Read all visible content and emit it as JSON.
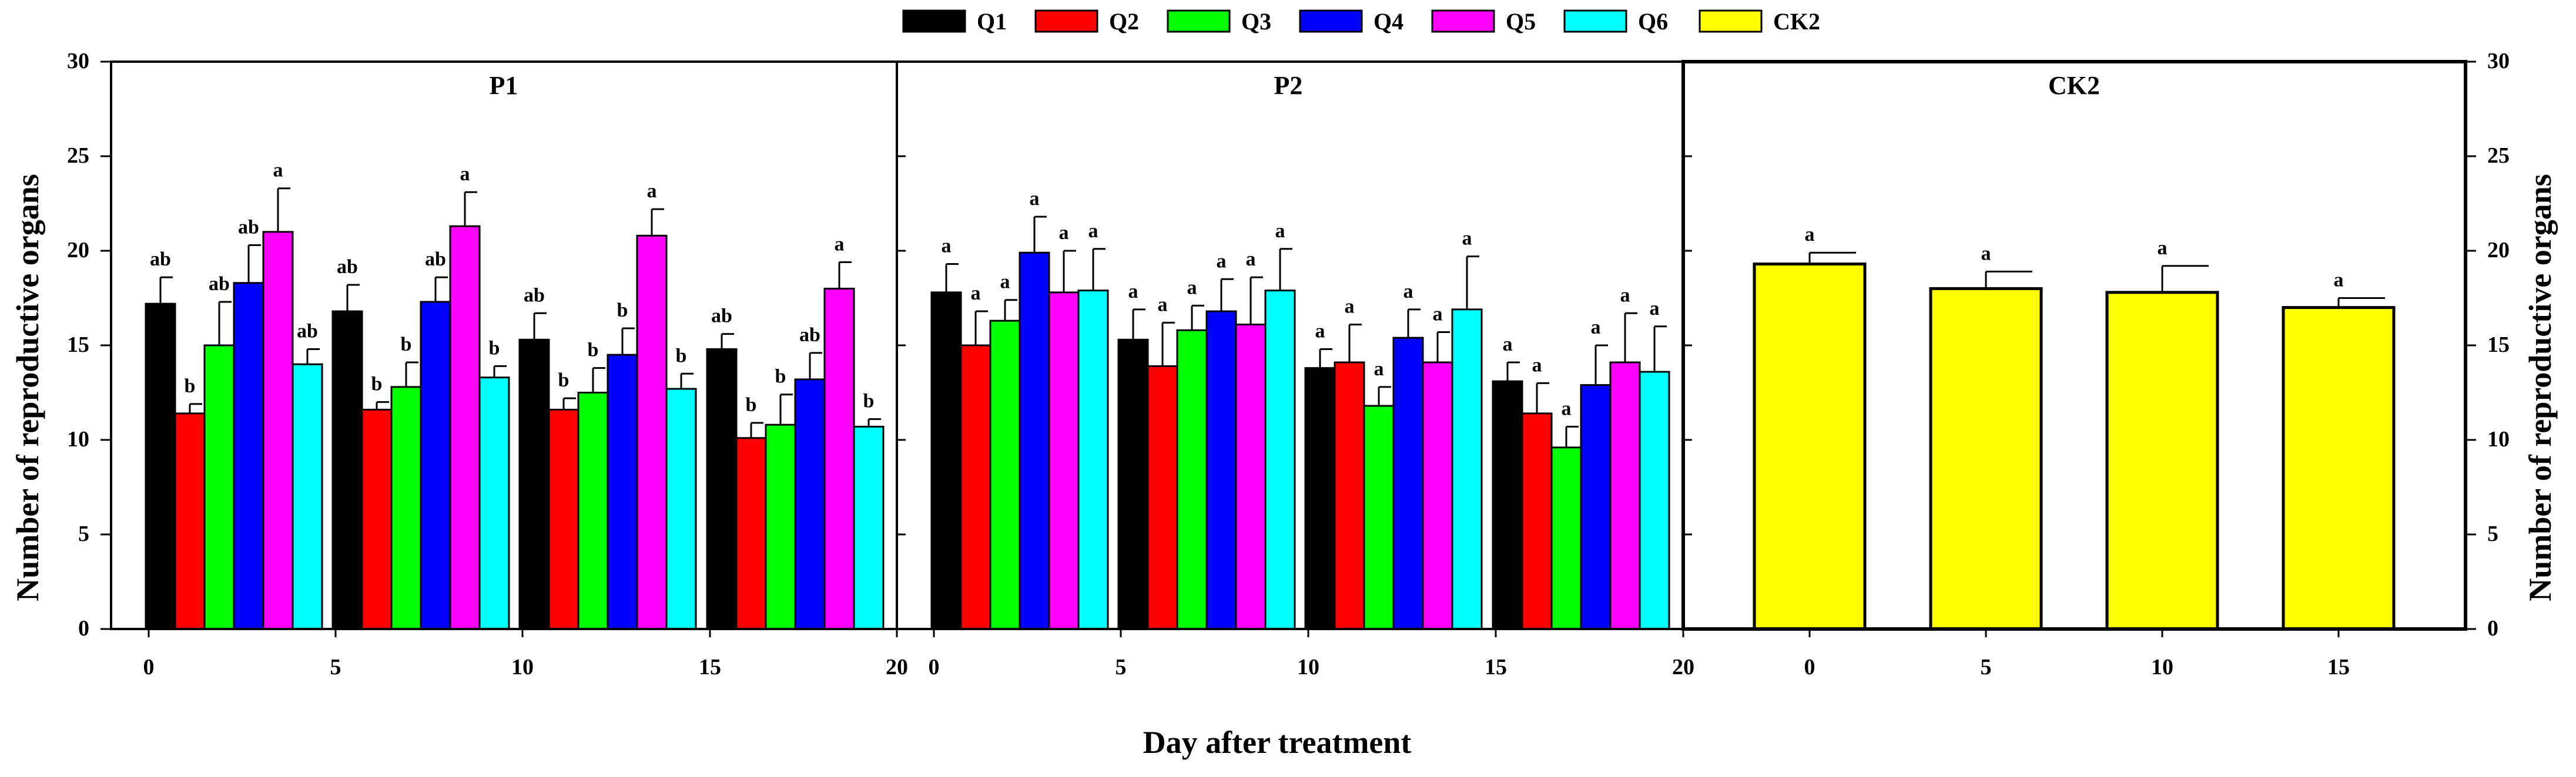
{
  "chart_data": {
    "type": "bar",
    "ylabel": "Number of reproductive organs",
    "xlabel": "Day after treatment",
    "ylim": [
      0,
      30
    ],
    "yticks": [
      "0",
      "5",
      "10",
      "15",
      "20",
      "25",
      "30"
    ],
    "xticks": [
      "0",
      "5",
      "10",
      "15",
      "20"
    ],
    "legend": [
      {
        "name": "Q1",
        "color": "#000000"
      },
      {
        "name": "Q2",
        "color": "#ff0000"
      },
      {
        "name": "Q3",
        "color": "#00ff00"
      },
      {
        "name": "Q4",
        "color": "#0000ff"
      },
      {
        "name": "Q5",
        "color": "#ff00ff"
      },
      {
        "name": "Q6",
        "color": "#00ffff"
      },
      {
        "name": "CK2",
        "color": "#ffff00"
      }
    ],
    "panels": [
      {
        "title": "P1",
        "groups": [
          {
            "day": "0",
            "values": [
              17.2,
              11.4,
              15.0,
              18.3,
              21.0,
              14.0
            ],
            "errors": [
              1.4,
              0.5,
              2.3,
              2.0,
              2.3,
              0.8
            ],
            "letters": [
              "ab",
              "b",
              "ab",
              "ab",
              "a",
              "ab"
            ]
          },
          {
            "day": "5",
            "values": [
              16.8,
              11.6,
              12.8,
              17.3,
              21.3,
              13.3
            ],
            "errors": [
              1.4,
              0.4,
              1.3,
              1.3,
              1.8,
              0.6
            ],
            "letters": [
              "ab",
              "b",
              "b",
              "ab",
              "a",
              "b"
            ]
          },
          {
            "day": "10",
            "values": [
              15.3,
              11.6,
              12.5,
              14.5,
              20.8,
              12.7
            ],
            "errors": [
              1.4,
              0.6,
              1.3,
              1.4,
              1.4,
              0.8
            ],
            "letters": [
              "ab",
              "b",
              "b",
              "b",
              "a",
              "b"
            ]
          },
          {
            "day": "15",
            "values": [
              14.8,
              10.1,
              10.8,
              13.2,
              18.0,
              10.7
            ],
            "errors": [
              0.8,
              0.8,
              1.6,
              1.4,
              1.4,
              0.4
            ],
            "letters": [
              "ab",
              "b",
              "b",
              "ab",
              "a",
              "b"
            ]
          }
        ]
      },
      {
        "title": "P2",
        "groups": [
          {
            "day": "0",
            "values": [
              17.8,
              15.0,
              16.3,
              19.9,
              17.8,
              17.9
            ],
            "errors": [
              1.5,
              1.8,
              1.1,
              1.9,
              2.2,
              2.2
            ],
            "letters": [
              "a",
              "a",
              "a",
              "a",
              "a",
              "a"
            ]
          },
          {
            "day": "5",
            "values": [
              15.3,
              13.9,
              15.8,
              16.8,
              16.1,
              17.9
            ],
            "errors": [
              1.6,
              2.3,
              1.3,
              1.7,
              2.5,
              2.2
            ],
            "letters": [
              "a",
              "a",
              "a",
              "a",
              "a",
              "a"
            ]
          },
          {
            "day": "10",
            "values": [
              13.8,
              14.1,
              11.8,
              15.4,
              14.1,
              16.9
            ],
            "errors": [
              1.0,
              2.0,
              1.0,
              1.5,
              1.6,
              2.8
            ],
            "letters": [
              "a",
              "a",
              "a",
              "a",
              "a",
              "a"
            ]
          },
          {
            "day": "15",
            "values": [
              13.1,
              11.4,
              9.6,
              12.9,
              14.1,
              13.6
            ],
            "errors": [
              1.0,
              1.6,
              1.1,
              2.1,
              2.6,
              2.4
            ],
            "letters": [
              "a",
              "a",
              "a",
              "a",
              "a",
              "a"
            ]
          }
        ]
      },
      {
        "title": "CK2",
        "categories": [
          "0",
          "5",
          "10",
          "15"
        ],
        "values": [
          19.3,
          18.0,
          17.8,
          17.0
        ],
        "errors": [
          0.6,
          0.9,
          1.4,
          0.5
        ],
        "letters": [
          "a",
          "a",
          "a",
          "a"
        ]
      }
    ]
  }
}
